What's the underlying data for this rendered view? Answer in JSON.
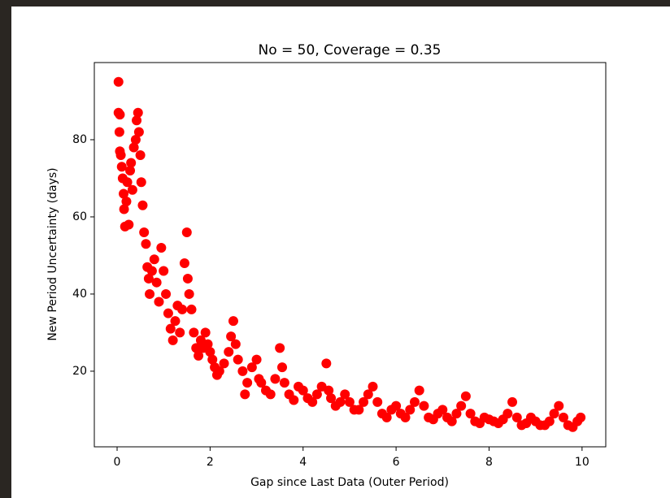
{
  "chart_data": {
    "type": "scatter",
    "title": "No = 50, Coverage = 0.35",
    "xlabel": "Gap since Last Data (Outer Period)",
    "ylabel": "New Period Uncertainty (days)",
    "color": "#ff0000",
    "xlim": [
      -0.49,
      10.51
    ],
    "ylim": [
      0.4,
      100
    ],
    "xticks": [
      0,
      2,
      4,
      6,
      8,
      10
    ],
    "yticks": [
      20,
      40,
      60,
      80
    ],
    "grid": false,
    "x": [
      0.03,
      0.03,
      0.06,
      0.05,
      0.06,
      0.08,
      0.1,
      0.12,
      0.14,
      0.15,
      0.17,
      0.2,
      0.22,
      0.25,
      0.28,
      0.3,
      0.33,
      0.36,
      0.4,
      0.42,
      0.45,
      0.47,
      0.5,
      0.52,
      0.55,
      0.58,
      0.62,
      0.65,
      0.68,
      0.7,
      0.75,
      0.8,
      0.85,
      0.9,
      0.95,
      1.0,
      1.05,
      1.1,
      1.15,
      1.2,
      1.25,
      1.3,
      1.35,
      1.4,
      1.45,
      1.5,
      1.52,
      1.55,
      1.6,
      1.65,
      1.7,
      1.75,
      1.8,
      1.85,
      1.9,
      1.95,
      2.0,
      2.05,
      2.1,
      2.15,
      2.2,
      2.3,
      2.4,
      2.45,
      2.5,
      2.55,
      2.6,
      2.7,
      2.75,
      2.8,
      2.9,
      3.0,
      3.05,
      3.1,
      3.2,
      3.3,
      3.4,
      3.5,
      3.55,
      3.6,
      3.7,
      3.8,
      3.9,
      4.0,
      4.1,
      4.2,
      4.3,
      4.4,
      4.5,
      4.55,
      4.6,
      4.7,
      4.8,
      4.9,
      5.0,
      5.1,
      5.2,
      5.3,
      5.4,
      5.5,
      5.6,
      5.7,
      5.8,
      5.9,
      6.0,
      6.1,
      6.2,
      6.3,
      6.4,
      6.5,
      6.6,
      6.7,
      6.8,
      6.9,
      7.0,
      7.1,
      7.2,
      7.3,
      7.4,
      7.5,
      7.6,
      7.7,
      7.8,
      7.9,
      8.0,
      8.1,
      8.2,
      8.3,
      8.4,
      8.5,
      8.6,
      8.7,
      8.8,
      8.9,
      9.0,
      9.1,
      9.2,
      9.3,
      9.4,
      9.5,
      9.6,
      9.7,
      9.8,
      9.9,
      9.97
    ],
    "y": [
      95,
      87,
      86.5,
      82,
      77,
      76,
      73,
      70,
      66,
      62,
      57.5,
      64,
      69,
      58,
      72,
      74,
      67,
      78,
      80,
      85,
      87,
      82,
      76,
      69,
      63,
      56,
      53,
      47,
      44,
      40,
      46,
      49,
      43,
      38,
      52,
      46,
      40,
      35,
      31,
      28,
      33,
      37,
      30,
      36,
      48,
      56,
      44,
      40,
      36,
      30,
      26,
      24,
      28,
      26,
      30,
      27,
      25,
      23,
      21,
      19,
      20,
      22,
      25,
      29,
      33,
      27,
      23,
      20,
      14,
      17,
      21,
      23,
      18,
      17,
      15,
      14,
      18,
      26,
      21,
      17,
      14,
      12.5,
      16,
      15,
      13,
      12,
      14,
      16,
      22,
      15,
      13,
      11,
      12,
      14,
      12,
      10,
      10,
      12,
      14,
      16,
      12,
      9,
      8,
      10,
      11,
      9,
      8,
      10,
      12,
      15,
      11,
      8,
      7.5,
      9,
      10,
      8,
      7,
      9,
      11,
      13.5,
      9,
      7,
      6.5,
      8,
      7.5,
      7,
      6.5,
      7.5,
      9,
      12,
      8,
      6,
      6.5,
      8,
      7,
      6,
      6,
      7,
      9,
      11,
      8,
      6,
      5.5,
      7,
      8
    ]
  }
}
